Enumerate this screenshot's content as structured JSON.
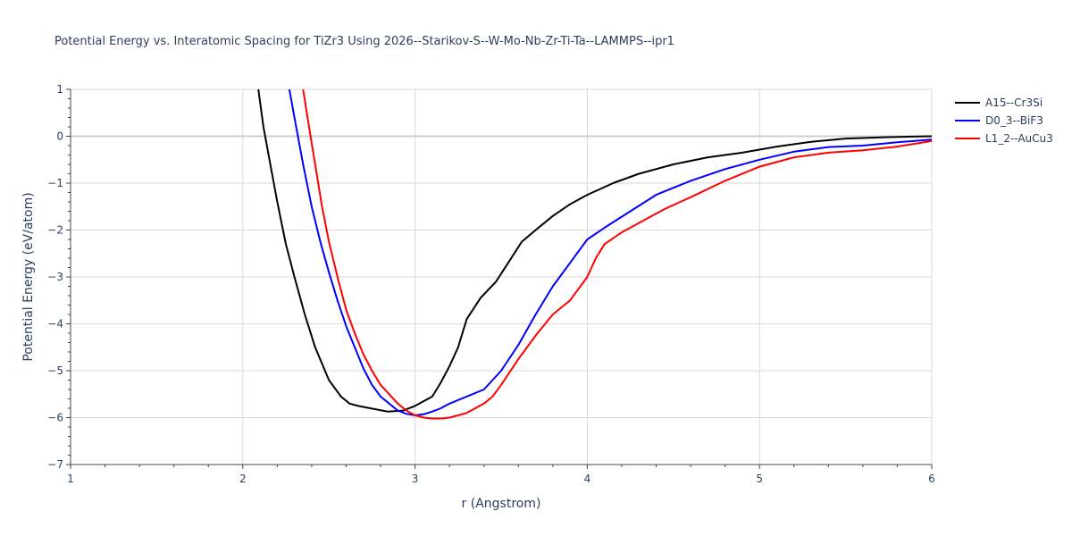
{
  "chart_data": {
    "type": "line",
    "title": "Potential Energy vs. Interatomic Spacing for TiZr3 Using 2026--Starikov-S--W-Mo-Nb-Zr-Ti-Ta--LAMMPS--ipr1",
    "xlabel": "r (Angstrom)",
    "ylabel": "Potential Energy (eV/atom)",
    "xlim": [
      1,
      6
    ],
    "ylim": [
      -7,
      1
    ],
    "xticks": [
      1,
      2,
      3,
      4,
      5,
      6
    ],
    "yticks": [
      -7,
      -6,
      -5,
      -4,
      -3,
      -2,
      -1,
      0,
      1
    ],
    "xtick_labels": [
      "1",
      "2",
      "3",
      "4",
      "5",
      "6"
    ],
    "ytick_labels": [
      "−7",
      "−6",
      "−5",
      "−4",
      "−3",
      "−2",
      "−1",
      "0",
      "1"
    ],
    "grid": true,
    "legend_position": "top-right",
    "series": [
      {
        "name": "A15--Cr3Si",
        "color": "#000000",
        "x": [
          2.09,
          2.12,
          2.16,
          2.2,
          2.25,
          2.3,
          2.36,
          2.42,
          2.5,
          2.57,
          2.62,
          2.67,
          2.74,
          2.84,
          2.93,
          3.0,
          3.05,
          3.1,
          3.15,
          3.2,
          3.25,
          3.3,
          3.38,
          3.47,
          3.55,
          3.62,
          3.7,
          3.8,
          3.9,
          4.0,
          4.15,
          4.3,
          4.5,
          4.7,
          4.9,
          5.1,
          5.3,
          5.5,
          5.75,
          6.0
        ],
        "y": [
          1.0,
          0.2,
          -0.6,
          -1.4,
          -2.3,
          -3.0,
          -3.8,
          -4.5,
          -5.2,
          -5.55,
          -5.7,
          -5.75,
          -5.8,
          -5.87,
          -5.85,
          -5.75,
          -5.65,
          -5.55,
          -5.25,
          -4.9,
          -4.5,
          -3.9,
          -3.45,
          -3.1,
          -2.65,
          -2.25,
          -2.0,
          -1.7,
          -1.45,
          -1.25,
          -1.0,
          -0.8,
          -0.6,
          -0.45,
          -0.35,
          -0.22,
          -0.12,
          -0.05,
          -0.02,
          0.0
        ]
      },
      {
        "name": "D0_3--BiF3",
        "color": "#0000ff",
        "x": [
          2.27,
          2.3,
          2.35,
          2.4,
          2.45,
          2.5,
          2.55,
          2.6,
          2.65,
          2.7,
          2.75,
          2.8,
          2.85,
          2.9,
          2.95,
          3.0,
          3.05,
          3.1,
          3.15,
          3.2,
          3.3,
          3.4,
          3.5,
          3.6,
          3.7,
          3.8,
          3.9,
          4.0,
          4.1,
          4.25,
          4.4,
          4.6,
          4.8,
          5.0,
          5.2,
          5.4,
          5.6,
          5.8,
          6.0
        ],
        "y": [
          1.0,
          0.4,
          -0.6,
          -1.5,
          -2.25,
          -2.9,
          -3.5,
          -4.05,
          -4.5,
          -4.95,
          -5.3,
          -5.55,
          -5.7,
          -5.85,
          -5.92,
          -5.95,
          -5.93,
          -5.87,
          -5.8,
          -5.7,
          -5.55,
          -5.4,
          -5.0,
          -4.45,
          -3.8,
          -3.2,
          -2.7,
          -2.2,
          -1.95,
          -1.6,
          -1.25,
          -0.95,
          -0.7,
          -0.5,
          -0.33,
          -0.23,
          -0.2,
          -0.13,
          -0.07
        ]
      },
      {
        "name": "L1_2--AuCu3",
        "color": "#ff0000",
        "x": [
          2.35,
          2.38,
          2.42,
          2.46,
          2.5,
          2.55,
          2.6,
          2.65,
          2.7,
          2.75,
          2.8,
          2.85,
          2.9,
          2.95,
          3.0,
          3.05,
          3.1,
          3.15,
          3.2,
          3.3,
          3.4,
          3.45,
          3.5,
          3.6,
          3.7,
          3.8,
          3.9,
          4.0,
          4.05,
          4.1,
          4.2,
          4.3,
          4.45,
          4.6,
          4.8,
          5.0,
          5.2,
          5.4,
          5.6,
          5.8,
          6.0
        ],
        "y": [
          1.0,
          0.3,
          -0.6,
          -1.5,
          -2.25,
          -3.0,
          -3.7,
          -4.2,
          -4.65,
          -5.0,
          -5.3,
          -5.5,
          -5.7,
          -5.85,
          -5.95,
          -6.0,
          -6.02,
          -6.02,
          -6.0,
          -5.9,
          -5.7,
          -5.55,
          -5.3,
          -4.75,
          -4.25,
          -3.8,
          -3.5,
          -3.0,
          -2.6,
          -2.3,
          -2.05,
          -1.85,
          -1.55,
          -1.3,
          -0.95,
          -0.65,
          -0.45,
          -0.35,
          -0.3,
          -0.22,
          -0.1
        ]
      }
    ]
  }
}
